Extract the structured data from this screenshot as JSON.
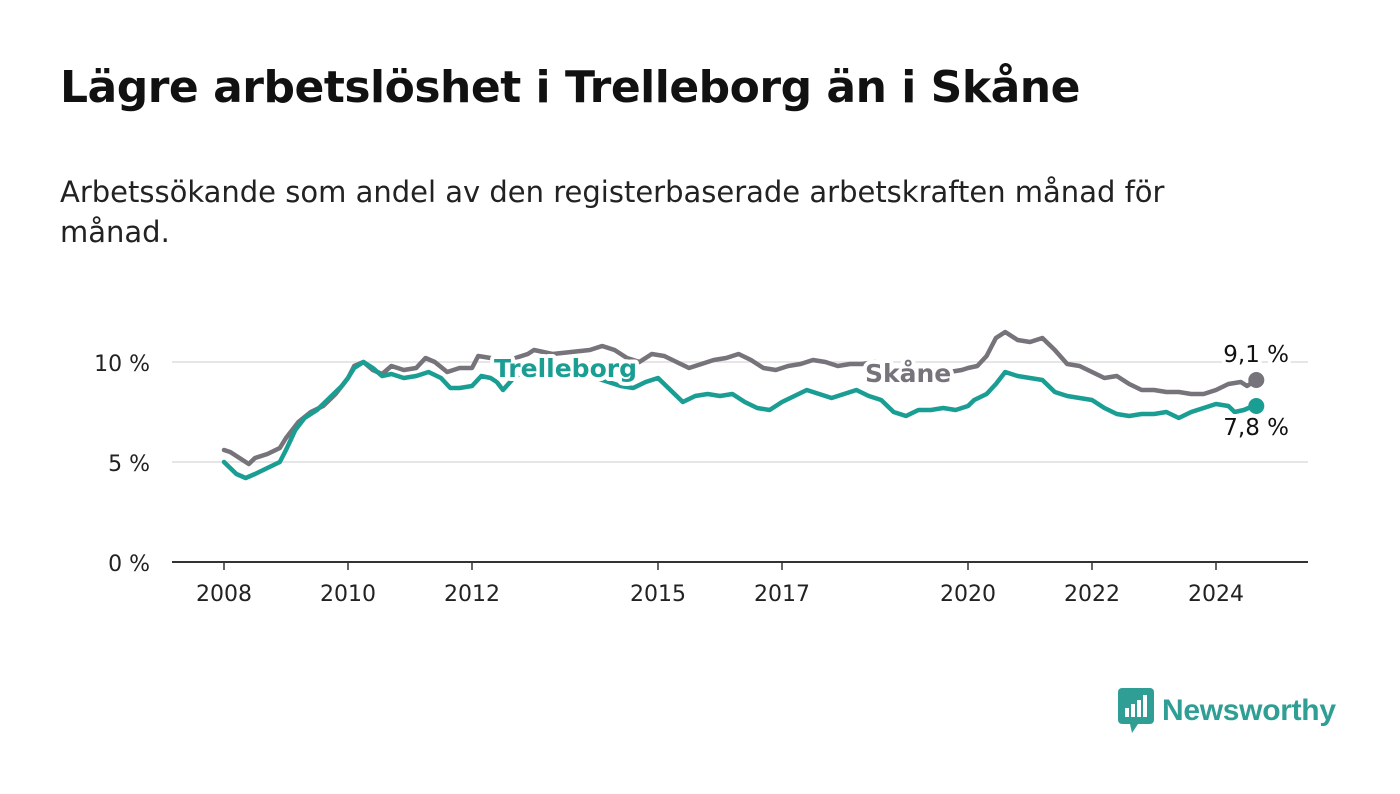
{
  "title": "Lägre arbetslöshet i Trelleborg än i Skåne",
  "subtitle": "Arbetssökande som andel av den registerbaserade arbetskraften månad för månad.",
  "brand": {
    "name": "Newsworthy"
  },
  "colors": {
    "skane": "#76737a",
    "trelleborg": "#1a9e94",
    "grid": "#dddddd",
    "axis": "#333333",
    "brand": "#2f9e94"
  },
  "chart_data": {
    "type": "line",
    "title": "Lägre arbetslöshet i Trelleborg än i Skåne",
    "xlabel": "",
    "ylabel": "",
    "xlim": [
      2007.2,
      2025.4
    ],
    "ylim": [
      0,
      12
    ],
    "y_ticks": [
      0,
      5,
      10
    ],
    "y_tick_labels": [
      "0 %",
      "5 %",
      "10 %"
    ],
    "x_ticks": [
      2008,
      2010,
      2012,
      2015,
      2017,
      2020,
      2022,
      2024
    ],
    "x_tick_labels": [
      "2008",
      "2010",
      "2012",
      "2015",
      "2017",
      "2020",
      "2022",
      "2024"
    ],
    "series": [
      {
        "name": "Skåne",
        "label": "Skåne",
        "end_label": "9,1 %",
        "points": [
          [
            2008.0,
            5.6
          ],
          [
            2008.1,
            5.5
          ],
          [
            2008.3,
            5.1
          ],
          [
            2008.4,
            4.9
          ],
          [
            2008.5,
            5.2
          ],
          [
            2008.7,
            5.4
          ],
          [
            2008.9,
            5.7
          ],
          [
            2009.0,
            6.2
          ],
          [
            2009.2,
            7.0
          ],
          [
            2009.4,
            7.5
          ],
          [
            2009.6,
            7.8
          ],
          [
            2009.8,
            8.4
          ],
          [
            2010.0,
            9.2
          ],
          [
            2010.1,
            9.8
          ],
          [
            2010.25,
            10.0
          ],
          [
            2010.4,
            9.6
          ],
          [
            2010.55,
            9.4
          ],
          [
            2010.7,
            9.8
          ],
          [
            2010.9,
            9.6
          ],
          [
            2011.1,
            9.7
          ],
          [
            2011.25,
            10.2
          ],
          [
            2011.4,
            10.0
          ],
          [
            2011.6,
            9.5
          ],
          [
            2011.8,
            9.7
          ],
          [
            2012.0,
            9.7
          ],
          [
            2012.1,
            10.3
          ],
          [
            2012.3,
            10.2
          ],
          [
            2012.5,
            9.9
          ],
          [
            2012.7,
            10.2
          ],
          [
            2012.9,
            10.4
          ],
          [
            2013.0,
            10.6
          ],
          [
            2013.3,
            10.4
          ],
          [
            2013.6,
            10.5
          ],
          [
            2013.9,
            10.6
          ],
          [
            2014.1,
            10.8
          ],
          [
            2014.3,
            10.6
          ],
          [
            2014.5,
            10.2
          ],
          [
            2014.7,
            10.0
          ],
          [
            2014.9,
            10.4
          ],
          [
            2015.1,
            10.3
          ],
          [
            2015.3,
            10.0
          ],
          [
            2015.5,
            9.7
          ],
          [
            2015.7,
            9.9
          ],
          [
            2015.9,
            10.1
          ],
          [
            2016.1,
            10.2
          ],
          [
            2016.3,
            10.4
          ],
          [
            2016.5,
            10.1
          ],
          [
            2016.7,
            9.7
          ],
          [
            2016.9,
            9.6
          ],
          [
            2017.1,
            9.8
          ],
          [
            2017.3,
            9.9
          ],
          [
            2017.5,
            10.1
          ],
          [
            2017.7,
            10.0
          ],
          [
            2017.9,
            9.8
          ],
          [
            2018.1,
            9.9
          ],
          [
            2018.3,
            9.9
          ],
          [
            2018.5,
            10.0
          ],
          [
            2018.7,
            9.8
          ],
          [
            2018.9,
            9.4
          ],
          [
            2019.1,
            9.2
          ],
          [
            2019.3,
            9.3
          ],
          [
            2019.5,
            9.4
          ],
          [
            2019.7,
            9.5
          ],
          [
            2019.9,
            9.6
          ],
          [
            2020.0,
            9.7
          ],
          [
            2020.15,
            9.8
          ],
          [
            2020.3,
            10.3
          ],
          [
            2020.45,
            11.2
          ],
          [
            2020.6,
            11.5
          ],
          [
            2020.8,
            11.1
          ],
          [
            2021.0,
            11.0
          ],
          [
            2021.2,
            11.2
          ],
          [
            2021.4,
            10.6
          ],
          [
            2021.6,
            9.9
          ],
          [
            2021.8,
            9.8
          ],
          [
            2022.0,
            9.5
          ],
          [
            2022.2,
            9.2
          ],
          [
            2022.4,
            9.3
          ],
          [
            2022.6,
            8.9
          ],
          [
            2022.8,
            8.6
          ],
          [
            2023.0,
            8.6
          ],
          [
            2023.2,
            8.5
          ],
          [
            2023.4,
            8.5
          ],
          [
            2023.6,
            8.4
          ],
          [
            2023.8,
            8.4
          ],
          [
            2024.0,
            8.6
          ],
          [
            2024.2,
            8.9
          ],
          [
            2024.4,
            9.0
          ],
          [
            2024.5,
            8.8
          ],
          [
            2024.6,
            9.0
          ],
          [
            2024.65,
            9.1
          ]
        ]
      },
      {
        "name": "Trelleborg",
        "label": "Trelleborg",
        "end_label": "7,8 %",
        "points": [
          [
            2008.0,
            5.0
          ],
          [
            2008.1,
            4.7
          ],
          [
            2008.2,
            4.4
          ],
          [
            2008.35,
            4.2
          ],
          [
            2008.5,
            4.4
          ],
          [
            2008.7,
            4.7
          ],
          [
            2008.9,
            5.0
          ],
          [
            2009.0,
            5.6
          ],
          [
            2009.15,
            6.6
          ],
          [
            2009.3,
            7.2
          ],
          [
            2009.5,
            7.6
          ],
          [
            2009.7,
            8.2
          ],
          [
            2009.9,
            8.8
          ],
          [
            2010.0,
            9.2
          ],
          [
            2010.1,
            9.7
          ],
          [
            2010.25,
            10.0
          ],
          [
            2010.4,
            9.7
          ],
          [
            2010.55,
            9.3
          ],
          [
            2010.7,
            9.4
          ],
          [
            2010.9,
            9.2
          ],
          [
            2011.1,
            9.3
          ],
          [
            2011.3,
            9.5
          ],
          [
            2011.5,
            9.2
          ],
          [
            2011.65,
            8.7
          ],
          [
            2011.8,
            8.7
          ],
          [
            2012.0,
            8.8
          ],
          [
            2012.15,
            9.3
          ],
          [
            2012.3,
            9.2
          ],
          [
            2012.4,
            9.0
          ],
          [
            2012.5,
            8.6
          ],
          [
            2012.7,
            9.3
          ],
          [
            2012.9,
            9.5
          ],
          [
            2013.2,
            9.3
          ],
          [
            2013.5,
            9.5
          ],
          [
            2013.8,
            9.4
          ],
          [
            2014.0,
            9.2
          ],
          [
            2014.2,
            9.0
          ],
          [
            2014.4,
            8.8
          ],
          [
            2014.6,
            8.7
          ],
          [
            2014.8,
            9.0
          ],
          [
            2015.0,
            9.2
          ],
          [
            2015.2,
            8.6
          ],
          [
            2015.4,
            8.0
          ],
          [
            2015.6,
            8.3
          ],
          [
            2015.8,
            8.4
          ],
          [
            2016.0,
            8.3
          ],
          [
            2016.2,
            8.4
          ],
          [
            2016.4,
            8.0
          ],
          [
            2016.6,
            7.7
          ],
          [
            2016.8,
            7.6
          ],
          [
            2017.0,
            8.0
          ],
          [
            2017.2,
            8.3
          ],
          [
            2017.4,
            8.6
          ],
          [
            2017.6,
            8.4
          ],
          [
            2017.8,
            8.2
          ],
          [
            2018.0,
            8.4
          ],
          [
            2018.2,
            8.6
          ],
          [
            2018.4,
            8.3
          ],
          [
            2018.6,
            8.1
          ],
          [
            2018.8,
            7.5
          ],
          [
            2019.0,
            7.3
          ],
          [
            2019.2,
            7.6
          ],
          [
            2019.4,
            7.6
          ],
          [
            2019.6,
            7.7
          ],
          [
            2019.8,
            7.6
          ],
          [
            2020.0,
            7.8
          ],
          [
            2020.1,
            8.1
          ],
          [
            2020.3,
            8.4
          ],
          [
            2020.45,
            8.9
          ],
          [
            2020.6,
            9.5
          ],
          [
            2020.8,
            9.3
          ],
          [
            2021.0,
            9.2
          ],
          [
            2021.2,
            9.1
          ],
          [
            2021.4,
            8.5
          ],
          [
            2021.6,
            8.3
          ],
          [
            2021.8,
            8.2
          ],
          [
            2022.0,
            8.1
          ],
          [
            2022.2,
            7.7
          ],
          [
            2022.4,
            7.4
          ],
          [
            2022.6,
            7.3
          ],
          [
            2022.8,
            7.4
          ],
          [
            2023.0,
            7.4
          ],
          [
            2023.2,
            7.5
          ],
          [
            2023.4,
            7.2
          ],
          [
            2023.6,
            7.5
          ],
          [
            2023.8,
            7.7
          ],
          [
            2024.0,
            7.9
          ],
          [
            2024.2,
            7.8
          ],
          [
            2024.3,
            7.5
          ],
          [
            2024.45,
            7.6
          ],
          [
            2024.6,
            7.8
          ],
          [
            2024.65,
            7.8
          ]
        ]
      }
    ],
    "annotations": [
      {
        "text": "Trelleborg",
        "series": "Trelleborg"
      },
      {
        "text": "Skåne",
        "series": "Skåne"
      },
      {
        "text": "9,1 %",
        "series": "Skåne"
      },
      {
        "text": "7,8 %",
        "series": "Trelleborg"
      }
    ]
  }
}
